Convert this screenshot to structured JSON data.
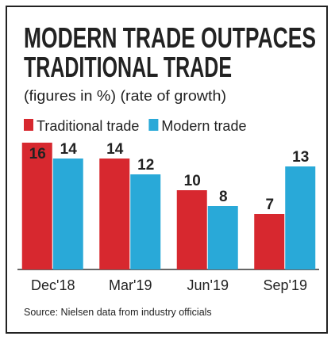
{
  "chart_data": {
    "type": "bar",
    "title": [
      "MODERN TRADE OUTPACES",
      "TRADITIONAL TRADE"
    ],
    "subtitle": "(figures in %) (rate of growth)",
    "categories": [
      "Dec'18",
      "Mar'19",
      "Jun'19",
      "Sep'19"
    ],
    "series": [
      {
        "name": "Traditional trade",
        "color": "#d7282f",
        "values": [
          16,
          14,
          10,
          7
        ]
      },
      {
        "name": "Modern trade",
        "color": "#29a9d8",
        "values": [
          14,
          12,
          8,
          13
        ]
      }
    ],
    "ylim": [
      0,
      16
    ],
    "source": "Source: Nielsen data from industry officials"
  }
}
